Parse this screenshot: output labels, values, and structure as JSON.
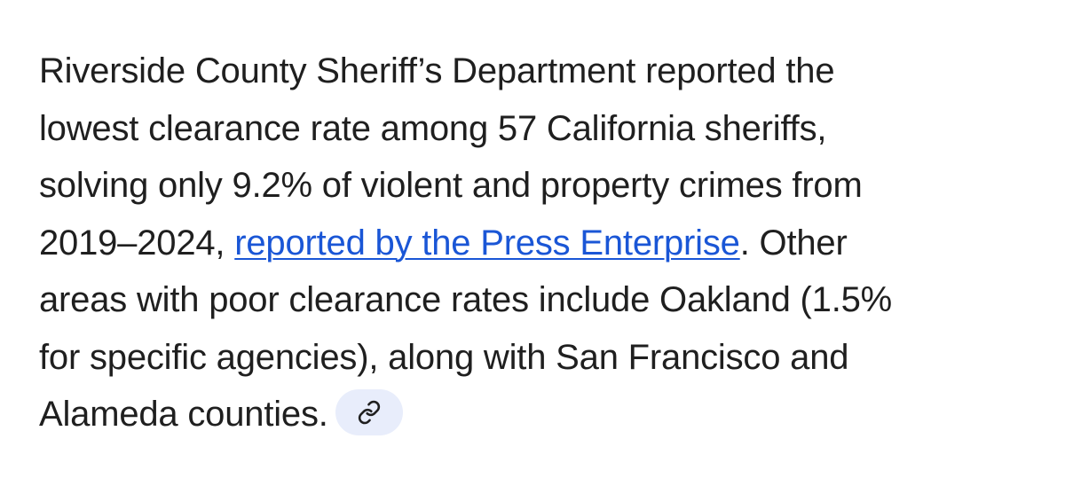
{
  "paragraph": {
    "line1": "Riverside County Sheriff’s Department reported the",
    "line2": "lowest clearance rate among 57 California sheriffs,",
    "line3": "solving only 9.2% of violent and property crimes from",
    "line4_prefix": "2019–2024, ",
    "link_text": "reported by the Press Enterprise",
    "line4_suffix": ". Other",
    "line5": "areas with poor clearance rates include Oakland (1.5%",
    "line6": "for specific agencies), along with San Francisco and",
    "line7": "Alameda counties."
  },
  "source_chip": {
    "icon": "link-icon"
  },
  "colors": {
    "text": "#1f1f1f",
    "link": "#1a56d6",
    "chip_bg": "#e8edfb",
    "chip_icon": "#1f1f1f"
  }
}
